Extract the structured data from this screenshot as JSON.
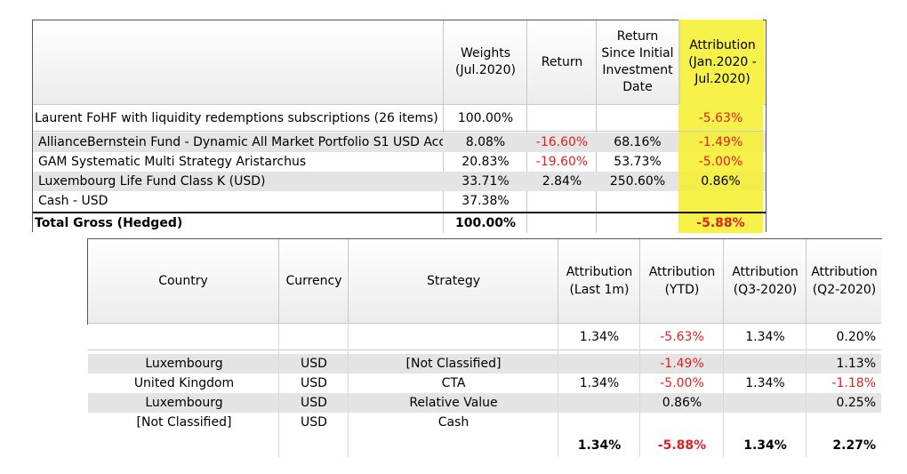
{
  "top_table": {
    "headers": {
      "name": "",
      "weights": "Weights\n(Jul.2020)",
      "return": "Return",
      "return_since": "Return\nSince Initial\nInvestment\nDate",
      "attribution": "Attribution\n(Jan.2020 -\nJul.2020)"
    },
    "portfolio": {
      "name": "Laurent FoHF with liquidity redemptions subscriptions (26 items)",
      "weight": "100.00%",
      "attribution": "-5.63%"
    },
    "rows": [
      {
        "name": "AllianceBernstein Fund - Dynamic All Market Portfolio S1 USD Acc",
        "weight": "8.08%",
        "return": "-16.60%",
        "return_since": "68.16%",
        "attribution": "-1.49%"
      },
      {
        "name": "GAM Systematic Multi Strategy Aristarchus",
        "weight": "20.83%",
        "return": "-19.60%",
        "return_since": "53.73%",
        "attribution": "-5.00%"
      },
      {
        "name": "Luxembourg Life Fund Class K (USD)",
        "weight": "33.71%",
        "return": "2.84%",
        "return_since": "250.60%",
        "attribution": "0.86%"
      },
      {
        "name": "Cash - USD",
        "weight": "37.38%",
        "return": "",
        "return_since": "",
        "attribution": ""
      }
    ],
    "total": {
      "name": "Total Gross (Hedged)",
      "weight": "100.00%",
      "attribution": "-5.88%"
    }
  },
  "bottom_table": {
    "headers": {
      "country": "Country",
      "currency": "Currency",
      "strategy": "Strategy",
      "last1m": "Attribution\n(Last 1m)",
      "ytd": "Attribution\n(YTD)",
      "q3": "Attribution\n(Q3-2020)",
      "q2": "Attribution\n(Q2-2020)"
    },
    "summary": {
      "last1m": "1.34%",
      "ytd": "-5.63%",
      "q3": "1.34%",
      "q2": "0.20%"
    },
    "rows": [
      {
        "country": "Luxembourg",
        "currency": "USD",
        "strategy": "[Not Classified]",
        "last1m": "",
        "ytd": "-1.49%",
        "q3": "",
        "q2": "1.13%"
      },
      {
        "country": "United Kingdom",
        "currency": "USD",
        "strategy": "CTA",
        "last1m": "1.34%",
        "ytd": "-5.00%",
        "q3": "1.34%",
        "q2": "-1.18%"
      },
      {
        "country": "Luxembourg",
        "currency": "USD",
        "strategy": "Relative Value",
        "last1m": "",
        "ytd": "0.86%",
        "q3": "",
        "q2": "0.25%"
      },
      {
        "country": "[Not Classified]",
        "currency": "USD",
        "strategy": "Cash",
        "last1m": "",
        "ytd": "",
        "q3": "",
        "q2": ""
      }
    ],
    "total": {
      "last1m": "1.34%",
      "ytd": "-5.88%",
      "q3": "1.34%",
      "q2": "2.27%"
    }
  },
  "colors": {
    "highlight": "#f6f24a",
    "negative": "#e02020",
    "row_alt": "#e4e4e4"
  }
}
